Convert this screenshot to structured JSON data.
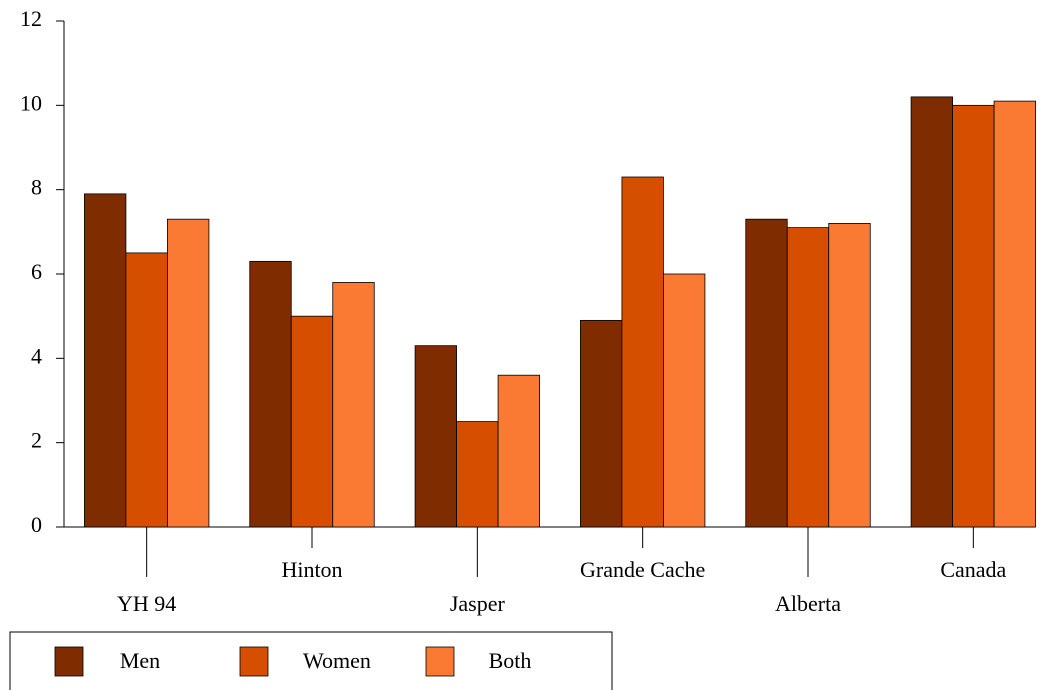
{
  "chart_data": {
    "type": "bar",
    "categories": [
      "YH 94",
      "Hinton",
      "Jasper",
      "Grande Cache",
      "Alberta",
      "Canada"
    ],
    "series": [
      {
        "name": "Men",
        "color": "#7f2c00",
        "values": [
          7.9,
          6.3,
          4.3,
          4.9,
          7.3,
          10.2
        ]
      },
      {
        "name": "Women",
        "color": "#d64f00",
        "values": [
          6.5,
          5.0,
          2.5,
          8.3,
          7.1,
          10.0
        ]
      },
      {
        "name": "Both",
        "color": "#fb7a33",
        "values": [
          7.3,
          5.8,
          3.6,
          6.0,
          7.2,
          10.1
        ]
      }
    ],
    "ylim": [
      0,
      12
    ],
    "yticks": [
      0,
      2,
      4,
      6,
      8,
      10,
      12
    ],
    "grid": false
  }
}
